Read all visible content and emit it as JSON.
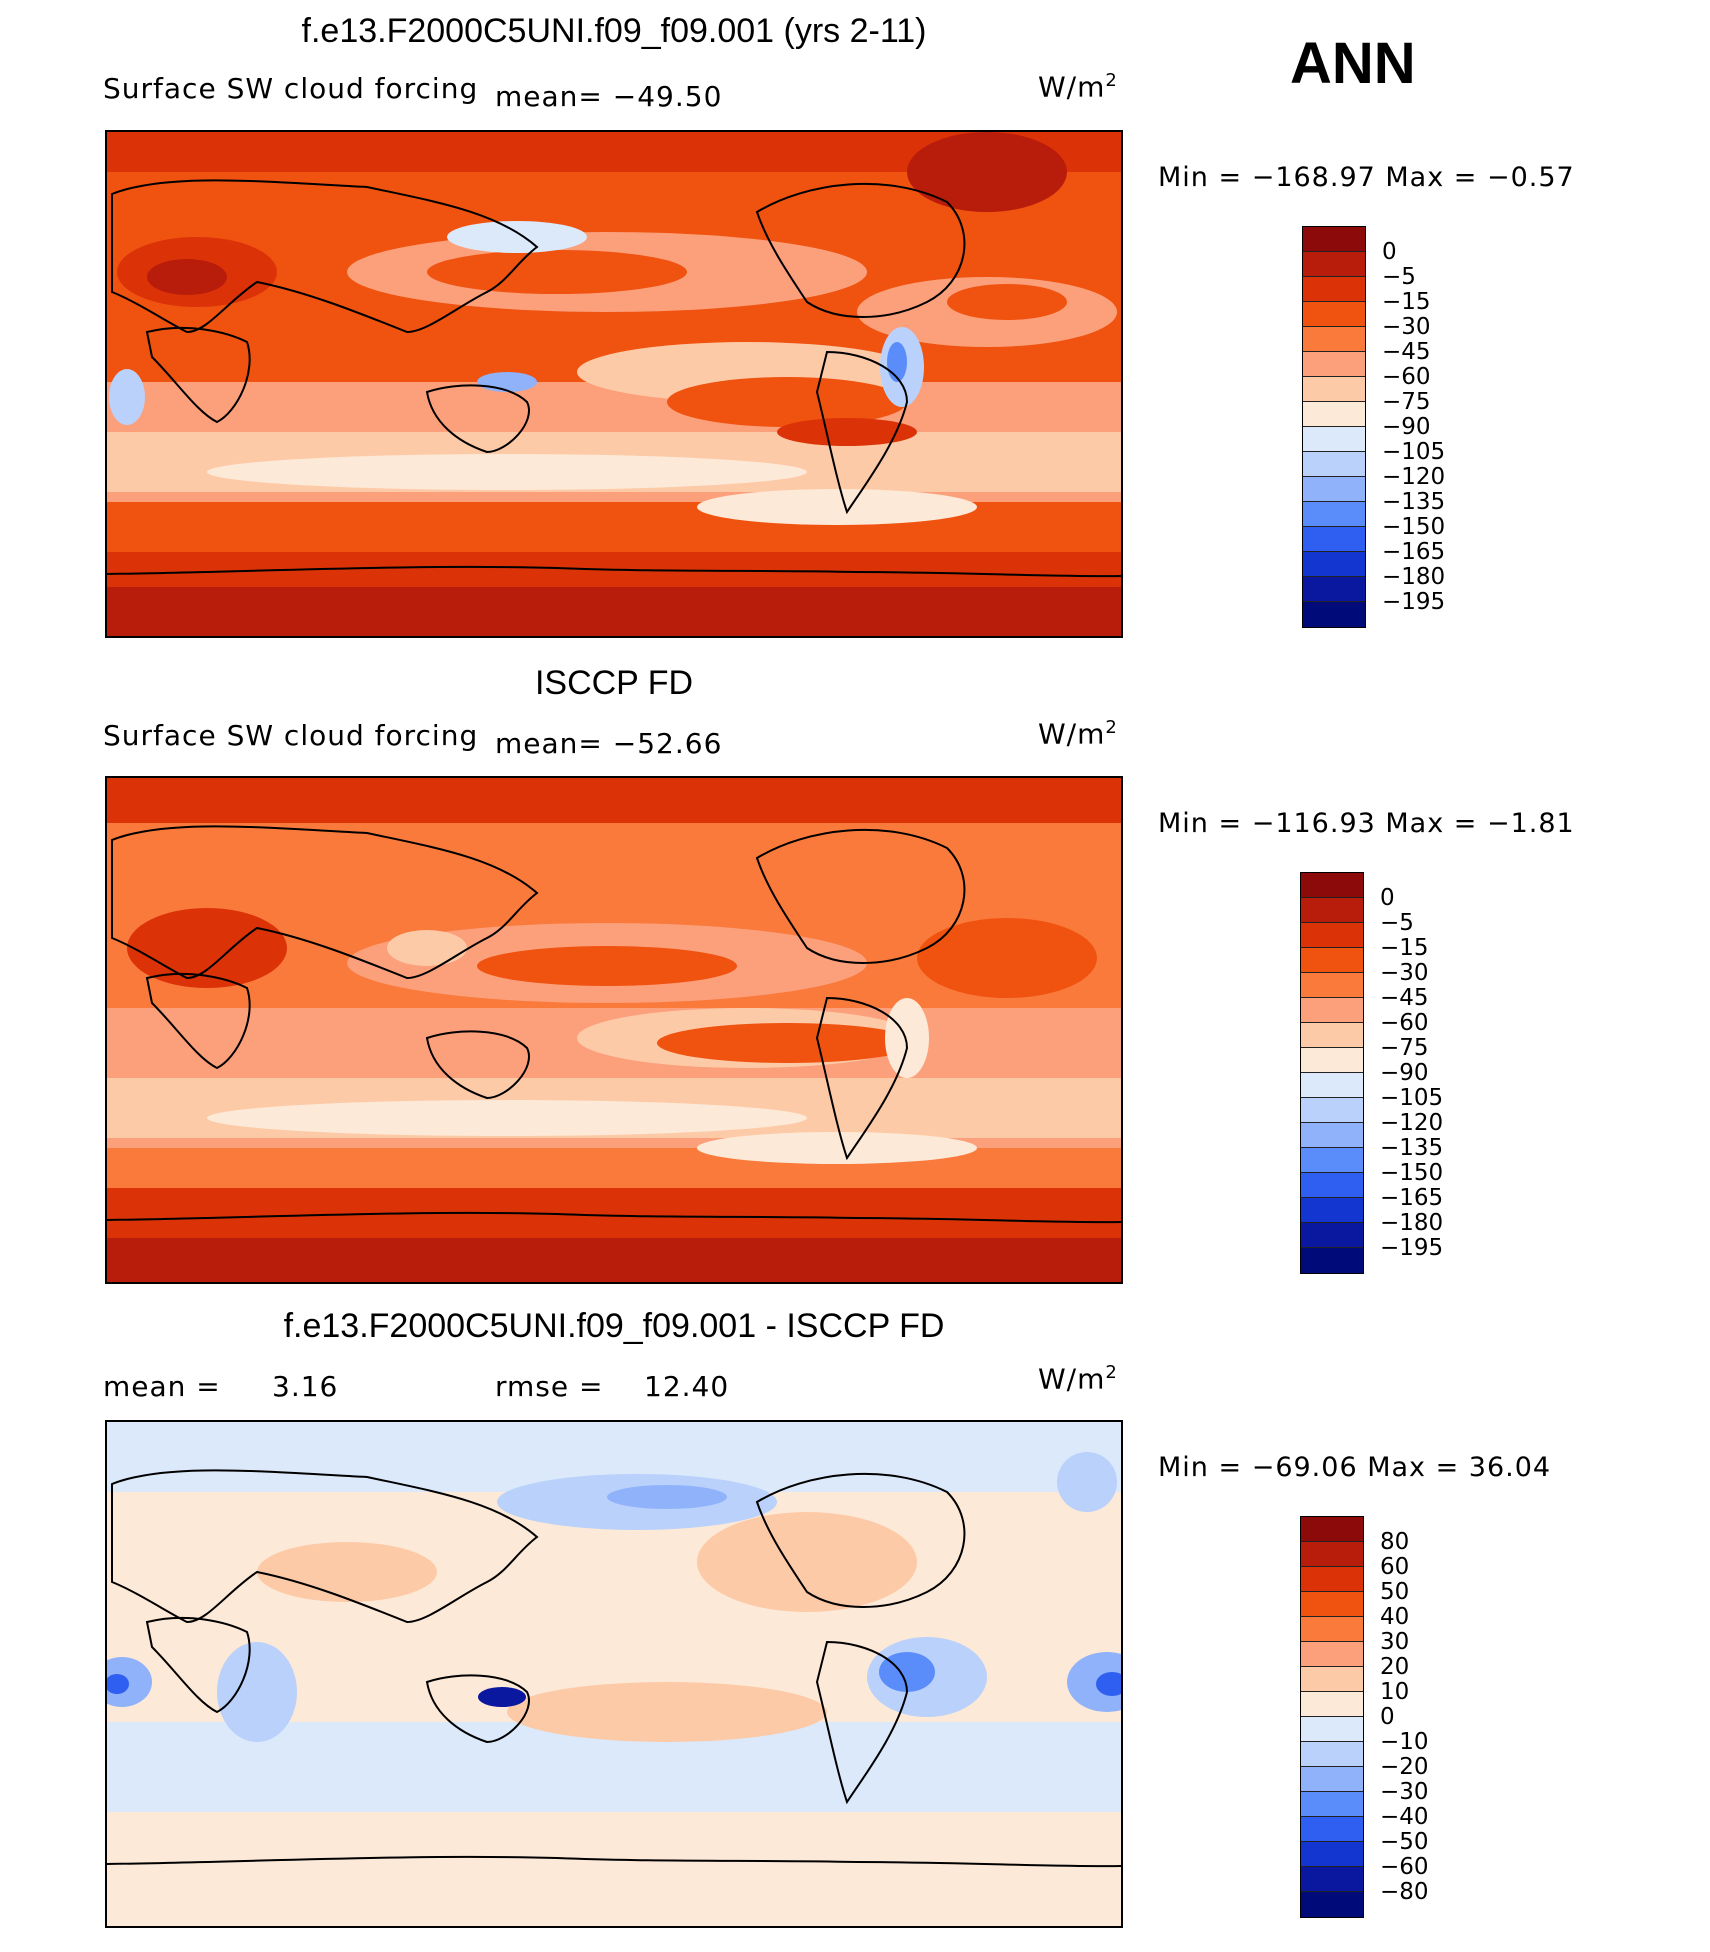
{
  "season_label": "ANN",
  "units_main": "W/m",
  "units_sup": "2",
  "panels": [
    {
      "title": "f.e13.F2000C5UNI.f09_f09.001 (yrs 2-11)",
      "variable": "Surface SW cloud forcing",
      "mean_text": "mean= −49.50",
      "min_text": "Min  =  −168.97  Max  =   −0.57",
      "colorbar_labels": [
        "0",
        "−5",
        "−15",
        "−30",
        "−45",
        "−60",
        "−75",
        "−90",
        "−105",
        "−120",
        "−135",
        "−150",
        "−165",
        "−180",
        "−195"
      ]
    },
    {
      "title": "ISCCP FD",
      "variable": "Surface SW cloud forcing",
      "mean_text": "mean= −52.66",
      "min_text": "Min  =  −116.93  Max  =   −1.81",
      "colorbar_labels": [
        "0",
        "−5",
        "−15",
        "−30",
        "−45",
        "−60",
        "−75",
        "−90",
        "−105",
        "−120",
        "−135",
        "−150",
        "−165",
        "−180",
        "−195"
      ]
    },
    {
      "title": "f.e13.F2000C5UNI.f09_f09.001 - ISCCP FD",
      "mean_label": "mean  =",
      "mean_value": "3.16",
      "rmse_label": "rmse  =",
      "rmse_value": "12.40",
      "min_text": "Min  =  −69.06  Max  =   36.04",
      "colorbar_labels": [
        "80",
        "60",
        "50",
        "40",
        "30",
        "20",
        "10",
        "0",
        "−10",
        "−20",
        "−30",
        "−40",
        "−50",
        "−60",
        "−80"
      ]
    }
  ],
  "colorbar_colors": [
    "#8c0a0a",
    "#b81c0a",
    "#dc3208",
    "#f0520f",
    "#fa7a3c",
    "#fca07c",
    "#fdcaa8",
    "#fde9d7",
    "#dbe9fb",
    "#b9d1fb",
    "#8fb2fa",
    "#5a8cfa",
    "#2e5ff0",
    "#1436d0",
    "#0a18a0",
    "#000a78"
  ],
  "colorbar_colors_diff": [
    "#8c0a0a",
    "#b81c0a",
    "#dc3208",
    "#f0520f",
    "#fa7a3c",
    "#fca07c",
    "#fdcaa8",
    "#fde9d7",
    "#dbe9fb",
    "#b9d1fb",
    "#8fb2fa",
    "#5a8cfa",
    "#2e5ff0",
    "#1436d0",
    "#0a18a0",
    "#000a78"
  ],
  "chart_data": [
    {
      "type": "heatmap",
      "title": "f.e13.F2000C5UNI.f09_f09.001 (yrs 2-11)",
      "variable": "Surface SW cloud forcing",
      "units": "W/m2",
      "mean": -49.5,
      "min": -168.97,
      "max": -0.57,
      "levels": [
        0,
        -5,
        -15,
        -30,
        -45,
        -60,
        -75,
        -90,
        -105,
        -120,
        -135,
        -150,
        -165,
        -180,
        -195
      ]
    },
    {
      "type": "heatmap",
      "title": "ISCCP FD",
      "variable": "Surface SW cloud forcing",
      "units": "W/m2",
      "mean": -52.66,
      "min": -116.93,
      "max": -1.81,
      "levels": [
        0,
        -5,
        -15,
        -30,
        -45,
        -60,
        -75,
        -90,
        -105,
        -120,
        -135,
        -150,
        -165,
        -180,
        -195
      ]
    },
    {
      "type": "heatmap",
      "title": "f.e13.F2000C5UNI.f09_f09.001 - ISCCP FD",
      "units": "W/m2",
      "mean": 3.16,
      "rmse": 12.4,
      "min": -69.06,
      "max": 36.04,
      "levels": [
        80,
        60,
        50,
        40,
        30,
        20,
        10,
        0,
        -10,
        -20,
        -30,
        -40,
        -50,
        -60,
        -80
      ]
    }
  ]
}
